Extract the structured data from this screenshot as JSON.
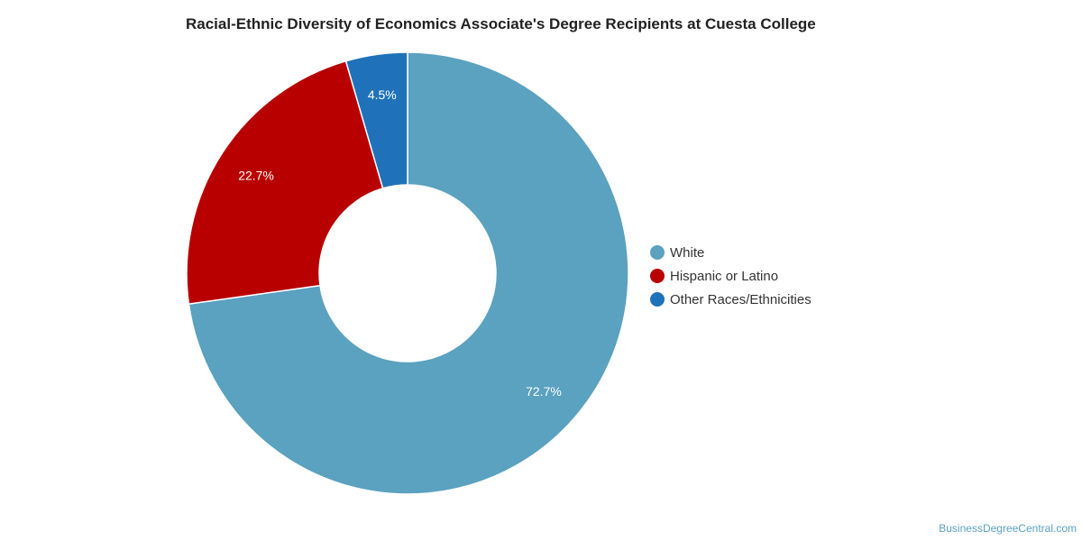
{
  "chart_data": {
    "type": "pie",
    "title": "Racial-Ethnic Diversity of Economics Associate's Degree Recipients at Cuesta College",
    "legend_position": "right",
    "slices": [
      {
        "name": "White",
        "value": 72.7,
        "label": "72.7%",
        "color": "#5ba1c0"
      },
      {
        "name": "Hispanic or Latino",
        "value": 22.7,
        "label": "22.7%",
        "color": "#b80000"
      },
      {
        "name": "Other Races/Ethnicities",
        "value": 4.5,
        "label": "4.5%",
        "color": "#1f72b9"
      }
    ]
  },
  "source": "BusinessDegreeCentral.com"
}
